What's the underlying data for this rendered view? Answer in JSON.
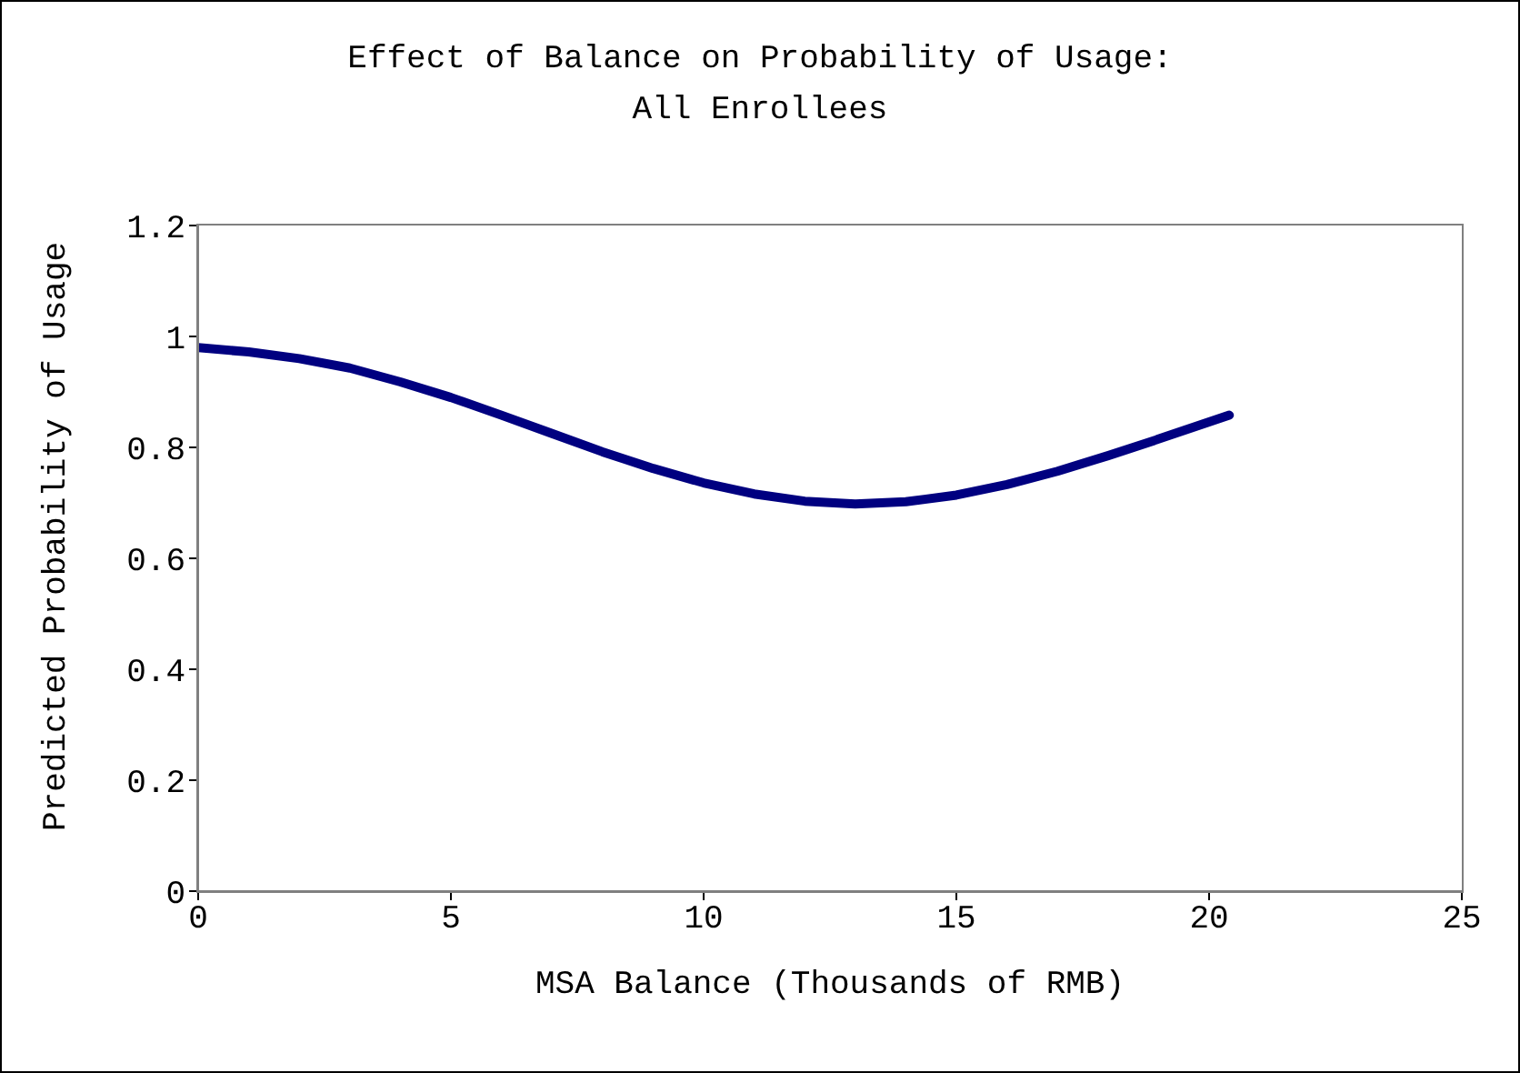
{
  "chart_data": {
    "type": "line",
    "title": "Effect of Balance on Probability of Usage:\nAll Enrollees",
    "xlabel": "MSA Balance (Thousands of RMB)",
    "ylabel": "Predicted Probability of Usage",
    "x": [
      0,
      1,
      2,
      3,
      4,
      5,
      6,
      7,
      8,
      9,
      10,
      11,
      12,
      13,
      14,
      15,
      16,
      17,
      18,
      19,
      20,
      20.4
    ],
    "series": [
      {
        "color": "#000080",
        "values": [
          0.98,
          0.972,
          0.96,
          0.943,
          0.918,
          0.89,
          0.858,
          0.825,
          0.792,
          0.762,
          0.736,
          0.716,
          0.703,
          0.698,
          0.702,
          0.714,
          0.733,
          0.757,
          0.785,
          0.815,
          0.846,
          0.858
        ]
      }
    ],
    "xlim": [
      0,
      25
    ],
    "xticks": [
      0,
      5,
      10,
      15,
      20,
      25
    ],
    "ylim": [
      0,
      1.2
    ],
    "yticks": [
      0,
      0.2,
      0.4,
      0.6,
      0.8,
      1,
      1.2
    ],
    "grid": false,
    "marker": "none",
    "line_style": "solid"
  }
}
